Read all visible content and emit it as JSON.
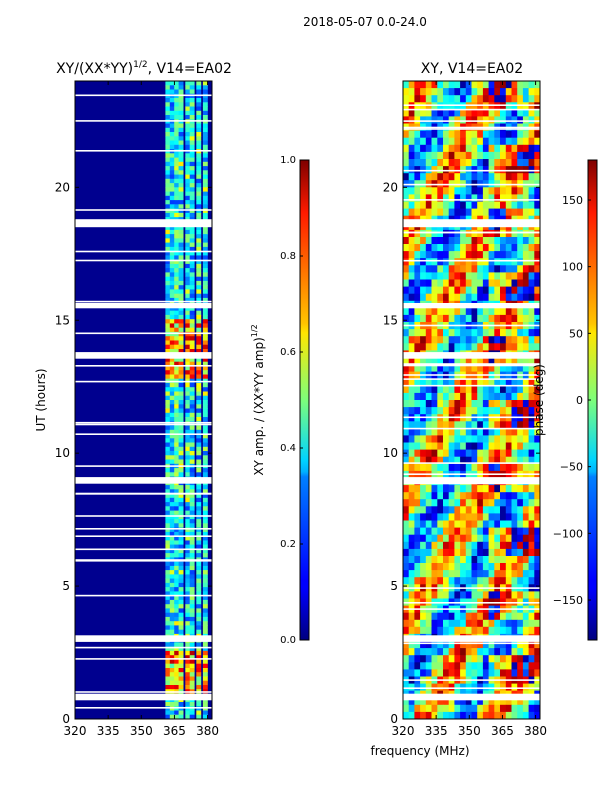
{
  "suptitle": "2018-05-07 0.0-24.0",
  "shared_xlabel": "frequency (MHz)",
  "chart_data": [
    {
      "type": "heatmap",
      "title_prefix": "XY/(XX*YY)",
      "title_exp": "1/2",
      "title_suffix": ", V14=EA02",
      "xlabel": "",
      "ylabel": "UT (hours)",
      "xlim": [
        320,
        382
      ],
      "ylim": [
        0,
        24
      ],
      "xticks": [
        320,
        335,
        350,
        365,
        380
      ],
      "yticks": [
        0,
        5,
        10,
        15,
        20
      ],
      "active_band_mhz": [
        359,
        381
      ],
      "active_channels_mhz": [
        362,
        364,
        366,
        368,
        371,
        373,
        376,
        379
      ],
      "bright_hours": [
        [
          0.9,
          2.5
        ],
        [
          12.8,
          15.0
        ]
      ],
      "flagged_gaps_hours": [
        [
          0.7,
          0.95
        ],
        [
          2.9,
          3.15
        ],
        [
          8.85,
          9.1
        ],
        [
          13.55,
          13.8
        ],
        [
          15.45,
          15.65
        ],
        [
          18.5,
          18.8
        ]
      ],
      "colorbar": {
        "label_prefix": "XY amp. / (XX*YY amp)",
        "label_exp": "1/2",
        "range": [
          0.0,
          1.0
        ],
        "ticks": [
          "0.0",
          "0.2",
          "0.4",
          "0.6",
          "0.8",
          "1.0"
        ],
        "colormap": "jet"
      }
    },
    {
      "type": "heatmap",
      "title": "XY, V14=EA02",
      "xlabel": "frequency (MHz)",
      "ylabel": "",
      "xlim": [
        320,
        382
      ],
      "ylim": [
        0,
        24
      ],
      "xticks": [
        320,
        335,
        350,
        365,
        380
      ],
      "yticks": [
        0,
        5,
        10,
        15,
        20
      ],
      "flagged_gaps_hours": [
        [
          0.7,
          0.95
        ],
        [
          2.9,
          3.15
        ],
        [
          8.85,
          9.1
        ],
        [
          13.55,
          13.8
        ],
        [
          15.45,
          15.65
        ],
        [
          18.5,
          18.8
        ]
      ],
      "colorbar": {
        "label": "phase (deg)",
        "range": [
          -180,
          180
        ],
        "ticks": [
          "150",
          "100",
          "50",
          "0",
          "−50",
          "−100",
          "−150"
        ],
        "tick_values": [
          150,
          100,
          50,
          0,
          -50,
          -100,
          -150
        ],
        "colormap": "jet"
      }
    }
  ]
}
